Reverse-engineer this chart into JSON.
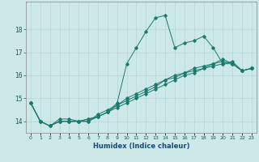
{
  "xlabel": "Humidex (Indice chaleur)",
  "background_color": "#cde8e8",
  "grid_color": "#b8d4d4",
  "line_color": "#1a7a6e",
  "x_values": [
    0,
    1,
    2,
    3,
    4,
    5,
    6,
    7,
    8,
    9,
    10,
    11,
    12,
    13,
    14,
    15,
    16,
    17,
    18,
    19,
    20,
    21,
    22,
    23
  ],
  "series": [
    [
      14.8,
      14.0,
      13.8,
      14.1,
      14.1,
      14.0,
      14.1,
      14.2,
      14.4,
      14.8,
      16.5,
      17.2,
      17.9,
      18.5,
      18.6,
      17.2,
      17.4,
      17.5,
      17.7,
      17.2,
      16.5,
      16.6,
      16.2,
      16.3
    ],
    [
      14.8,
      14.0,
      13.8,
      14.0,
      14.0,
      14.0,
      14.0,
      14.3,
      14.5,
      14.7,
      15.0,
      15.2,
      15.4,
      15.6,
      15.8,
      16.0,
      16.1,
      16.3,
      16.4,
      16.5,
      16.7,
      16.5,
      16.2,
      16.3
    ],
    [
      14.8,
      14.0,
      13.8,
      14.0,
      14.0,
      14.0,
      14.1,
      14.2,
      14.4,
      14.7,
      14.9,
      15.1,
      15.3,
      15.5,
      15.8,
      15.9,
      16.1,
      16.2,
      16.3,
      16.5,
      16.6,
      16.5,
      16.2,
      16.3
    ],
    [
      14.8,
      14.0,
      13.8,
      14.0,
      14.0,
      14.0,
      14.0,
      14.2,
      14.4,
      14.6,
      14.8,
      15.0,
      15.2,
      15.4,
      15.6,
      15.8,
      16.0,
      16.1,
      16.3,
      16.4,
      16.5,
      16.5,
      16.2,
      16.3
    ]
  ],
  "ylim": [
    13.5,
    19.2
  ],
  "xlim": [
    -0.5,
    23.5
  ],
  "yticks": [
    14,
    15,
    16,
    17,
    18
  ],
  "xtick_labels": [
    "0",
    "1",
    "2",
    "3",
    "4",
    "5",
    "6",
    "7",
    "8",
    "9",
    "10",
    "11",
    "12",
    "13",
    "14",
    "15",
    "16",
    "17",
    "18",
    "19",
    "20",
    "21",
    "22",
    "23"
  ]
}
